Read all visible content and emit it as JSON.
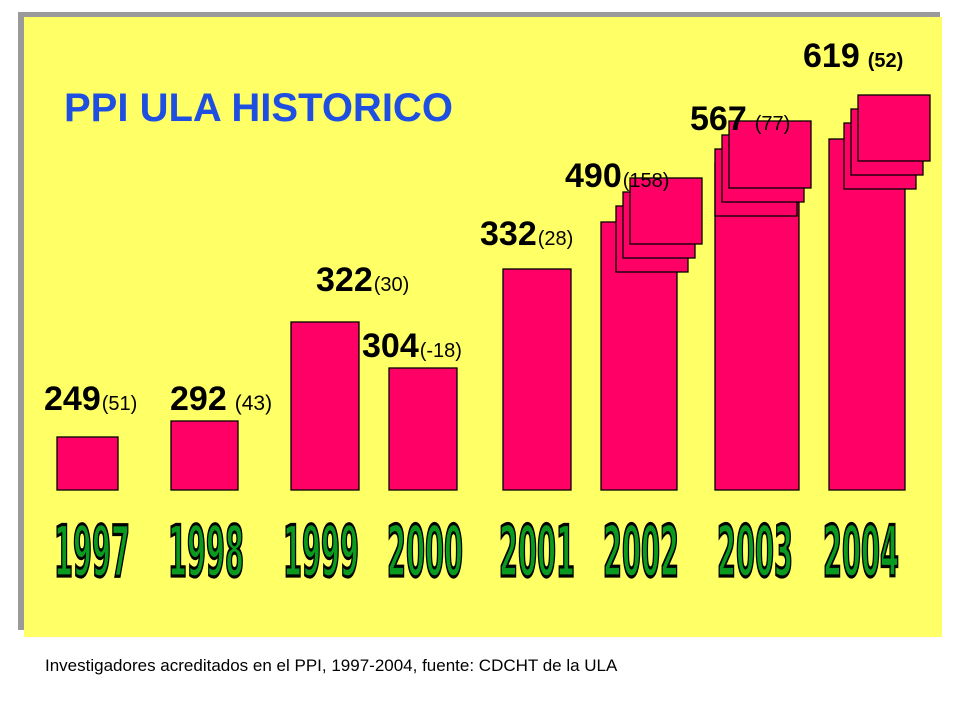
{
  "colors": {
    "background": "#ffffff",
    "panel": "#ffff66",
    "panel_shadow": "#9a9a9a",
    "bar": "#ff0066",
    "title": "#1f4fe0",
    "year_label": "#0b9a20",
    "text": "#000000"
  },
  "chart_data": {
    "type": "bar",
    "title": "PPI ULA HISTORICO",
    "categories": [
      "1997",
      "1998",
      "1999",
      "2000",
      "2001",
      "2002",
      "2003",
      "2004"
    ],
    "values": [
      249,
      292,
      322,
      304,
      332,
      490,
      567,
      619
    ],
    "changes": [
      51,
      43,
      30,
      -18,
      28,
      158,
      77,
      52
    ],
    "value_labels": [
      "249",
      "292",
      "322",
      "304",
      "332",
      "490",
      "567",
      "619"
    ],
    "change_labels": [
      "(51)",
      "(43)",
      "(30)",
      "(-18)",
      "(28)",
      "(158)",
      "(77)",
      "(52)"
    ],
    "grid": false,
    "legend": "none"
  },
  "caption": "Investigadores acreditados en el PPI, 1997-2004, fuente: CDCHT de la ULA"
}
